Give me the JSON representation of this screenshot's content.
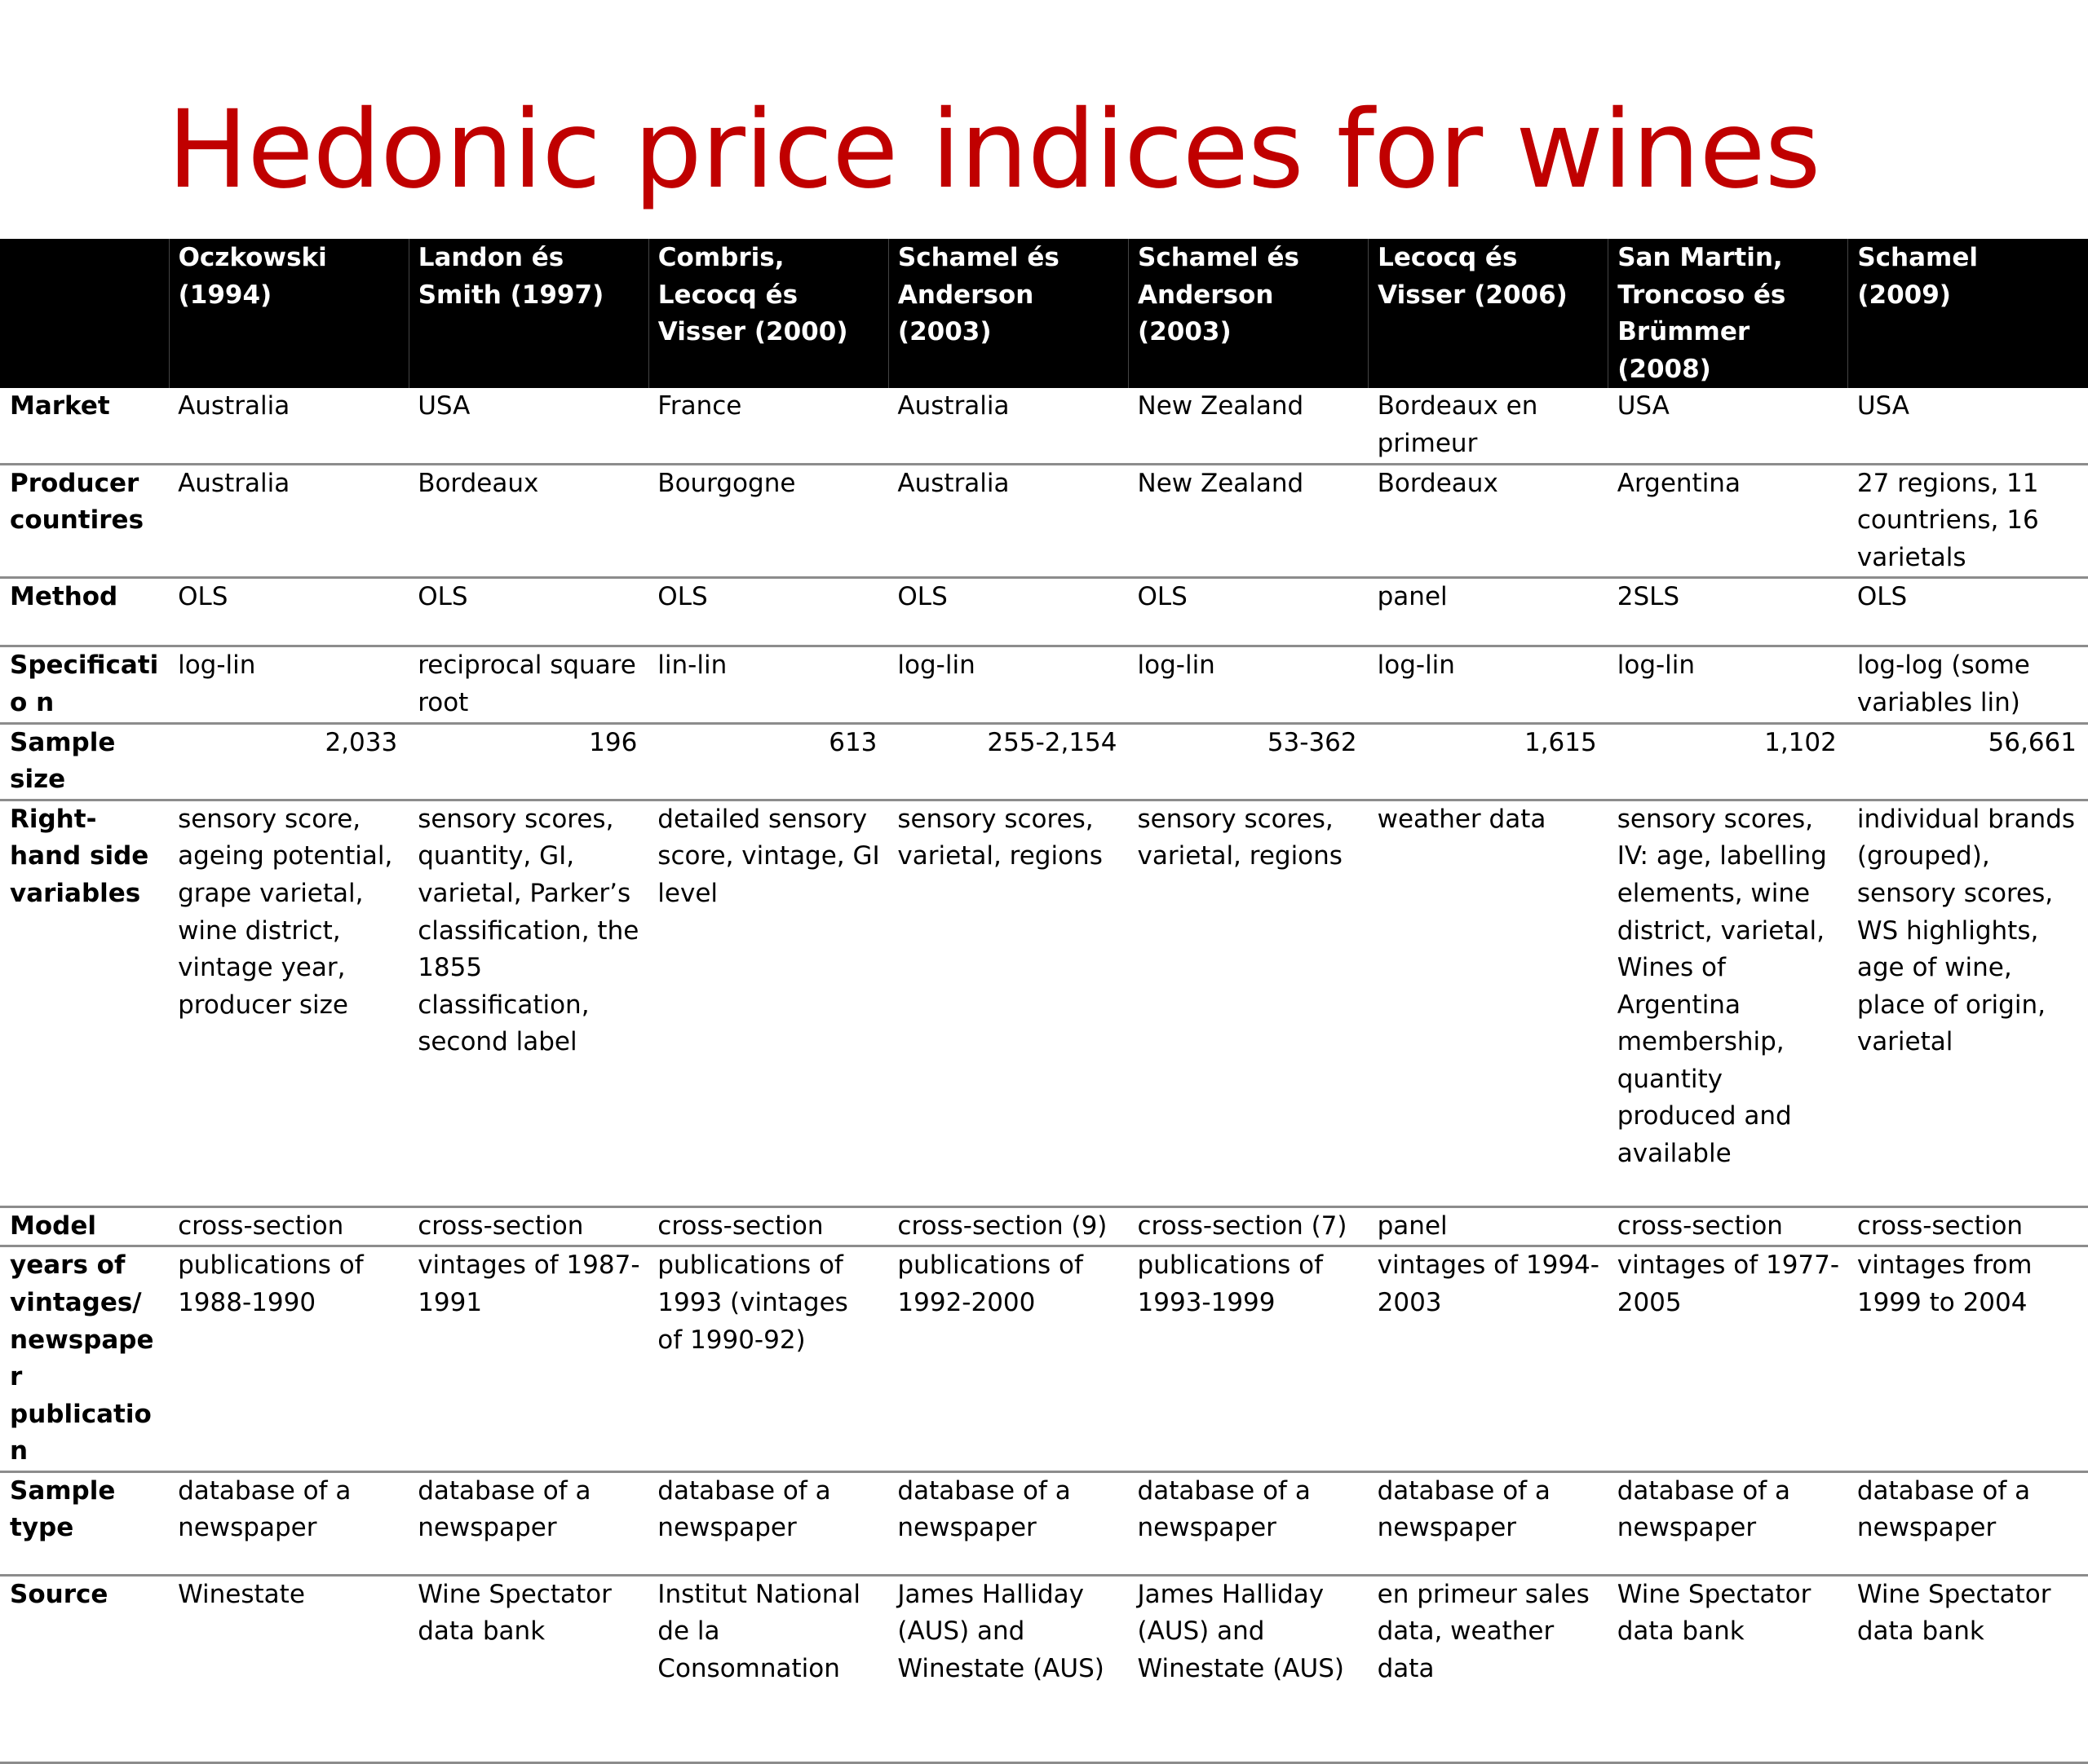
{
  "title": "Hedonic price indices for wines",
  "columns": [
    "",
    "Oczkowski (1994)",
    "Landon és Smith (1997)",
    "Combris, Lecocq és Visser (2000)",
    "Schamel és Anderson (2003)",
    "Schamel és Anderson (2003)",
    "Lecocq és Visser (2006)",
    "San Martin, Troncoso és Brümmer (2008)",
    "Schamel (2009)"
  ],
  "rows": [
    {
      "label": "Market",
      "cells": [
        "Australia",
        "USA",
        "France",
        "Australia",
        "New Zealand",
        "Bordeaux en primeur",
        "USA",
        "USA"
      ]
    },
    {
      "label": "Producer countires",
      "cells": [
        "Australia",
        "Bordeaux",
        "Bourgogne",
        "Australia",
        "New Zealand",
        "Bordeaux",
        "Argentina",
        "27 regions, 11 countriens, 16 varietals"
      ]
    },
    {
      "label": "Method",
      "cells": [
        "OLS",
        "OLS",
        "OLS",
        "OLS",
        "OLS",
        "panel",
        "2SLS",
        "OLS"
      ]
    },
    {
      "label": "Specificatio n",
      "cells": [
        "log-lin",
        "reciprocal square root",
        "lin-lin",
        "log-lin",
        "log-lin",
        "log-lin",
        "log-lin",
        "log-log (some variables lin)"
      ]
    },
    {
      "label": "Sample size",
      "cells": [
        "2,033",
        "196",
        "613",
        "255-2,154",
        "53-362",
        "1,615",
        "1,102",
        "56,661"
      ]
    },
    {
      "label": "Right-hand side variables",
      "cells": [
        "sensory score, ageing potential, grape varietal, wine district, vintage year, producer size",
        "sensory scores, quantity, GI, varietal, Parker’s classification, the 1855 classification, second label",
        "detailed sensory score, vintage, GI level",
        "sensory scores, varietal, regions",
        "sensory scores, varietal, regions",
        "weather data",
        "sensory scores, IV: age, labelling elements, wine district, varietal, Wines of Argentina membership, quantity produced and available",
        "individual brands (grouped), sensory scores, WS highlights, age of wine, place of origin, varietal"
      ]
    },
    {
      "label": "Model",
      "cells": [
        "cross-section",
        "cross-section",
        "cross-section",
        "cross-section (9)",
        "cross-section (7)",
        "panel",
        "cross-section",
        "cross-section"
      ]
    },
    {
      "label": "years of vintages/ newspaper publication",
      "cells": [
        "publications of 1988-1990",
        "vintages of 1987-1991",
        "publications of 1993 (vintages of 1990-92)",
        "publications of 1992-2000",
        "publications of 1993-1999",
        "vintages of 1994-2003",
        "vintages of 1977-2005",
        "vintages from 1999 to 2004"
      ]
    },
    {
      "label": "Sample type",
      "cells": [
        "database of a newspaper",
        "database of a newspaper",
        "database of a newspaper",
        "database of a newspaper",
        "database of a newspaper",
        "database of a newspaper",
        "database of a newspaper",
        "database of a newspaper"
      ]
    },
    {
      "label": "Source",
      "cells": [
        "Winestate",
        "Wine Spectator data bank",
        "Institut National de la Consomnation",
        "James Halliday (AUS) and Winestate (AUS)",
        "James Halliday (AUS) and Winestate (AUS)",
        "en primeur sales data, weather data",
        "Wine Spectator data bank",
        "Wine Spectator data bank"
      ]
    }
  ]
}
